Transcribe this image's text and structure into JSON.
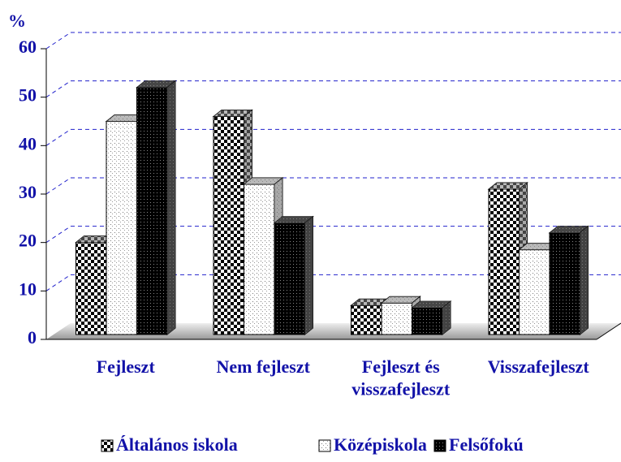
{
  "chart_data": {
    "type": "bar3d",
    "ylabel": "%",
    "categories": [
      "Fejleszt",
      "Nem fejleszt",
      "Fejleszt és\nvisszafejleszt",
      "Visszafejleszt"
    ],
    "series": [
      {
        "name": "Általános iskola",
        "values": [
          19,
          45,
          6,
          30
        ]
      },
      {
        "name": "Középiskola",
        "values": [
          44,
          31,
          6.5,
          17.5
        ]
      },
      {
        "name": "Felsőfokú",
        "values": [
          51,
          23,
          5.5,
          21
        ]
      }
    ],
    "ylim": [
      0,
      60
    ],
    "yticks": [
      0,
      10,
      20,
      30,
      40,
      50,
      60
    ],
    "grid": true,
    "legend": "bottom"
  }
}
